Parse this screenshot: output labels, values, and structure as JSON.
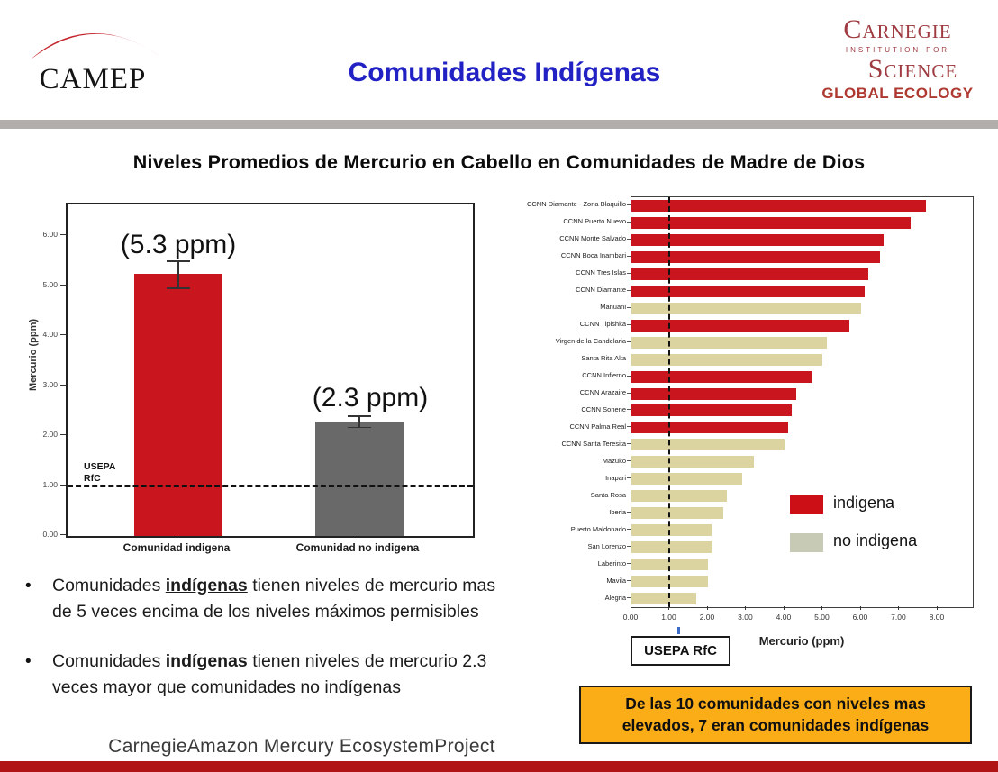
{
  "header": {
    "camep_logo_text": "CAMEP",
    "title": "Comunidades Indígenas",
    "carnegie_logo": {
      "line1": "Carnegie",
      "line2": "institution for",
      "line3": "Science",
      "line4": "GLOBAL ECOLOGY"
    }
  },
  "slide_title": "Niveles Promedios de Mercurio en Cabello en Comunidades de Madre de Dios",
  "colors": {
    "indigena_bar": "#C9151D",
    "no_indigena_bar": "#DBD4A0",
    "legend_indigena": "#CC0F17",
    "legend_no_indigena": "#C7CBB6",
    "gray_bar": "#696969",
    "header_title_blue": "#2222C4",
    "carnegie_maroon": "#9F3B41",
    "carnegie_ecology_red": "#AE3931",
    "camep_swoosh_red": "#C5262E",
    "divider_gray": "#B2AEAB",
    "callout_bg": "#FBAD18",
    "bottom_bar_red": "#B01414",
    "usepa_tick_blue": "#3B6CC7"
  },
  "chart_data": [
    {
      "type": "bar",
      "title": "Niveles Promedios de Mercurio en Cabello en Comunidades de Madre de Dios",
      "categories": [
        "Comunidad indigena",
        "Comunidad no indigena"
      ],
      "values": [
        5.25,
        2.3
      ],
      "errors": [
        0.27,
        0.11
      ],
      "annotations": [
        "(5.3 ppm)",
        "(2.3 ppm)"
      ],
      "bar_color_names": [
        "indigena_bar",
        "gray_bar"
      ],
      "ylabel": "Mercurio (ppm)",
      "yticks": [
        "0.00",
        "1.00",
        "2.00",
        "3.00",
        "4.00",
        "5.00",
        "6.00"
      ],
      "ylim": [
        0,
        6.64
      ],
      "grid": false,
      "legend_position": "none",
      "reference_line": {
        "value": 1.0,
        "label_lines": [
          "USEPA",
          "RfC"
        ]
      }
    },
    {
      "type": "bar-horizontal",
      "xlabel": "Mercurio (ppm)",
      "xticks": [
        "0.00",
        "1.00",
        "2.00",
        "3.00",
        "4.00",
        "5.00",
        "6.00",
        "7.00",
        "8.00"
      ],
      "xlim": [
        0,
        8.92
      ],
      "grid": false,
      "legend_position": "inside-right",
      "reference_line": {
        "value": 1.0,
        "label": "USEPA RfC"
      },
      "legend": [
        {
          "label": "indigena",
          "color_name": "legend_indigena"
        },
        {
          "label": "no indigena",
          "color_name": "legend_no_indigena"
        }
      ],
      "rows": [
        {
          "label": "CCNN Diamante - Zona Blaquillo",
          "value": 7.7,
          "group": "indigena"
        },
        {
          "label": "CCNN Puerto Nuevo",
          "value": 7.3,
          "group": "indigena"
        },
        {
          "label": "CCNN Monte Salvado",
          "value": 6.6,
          "group": "indigena"
        },
        {
          "label": "CCNN Boca Inambari",
          "value": 6.5,
          "group": "indigena"
        },
        {
          "label": "CCNN Tres Islas",
          "value": 6.2,
          "group": "indigena"
        },
        {
          "label": "CCNN Diamante",
          "value": 6.1,
          "group": "indigena"
        },
        {
          "label": "Manuani",
          "value": 6.0,
          "group": "no indigena"
        },
        {
          "label": "CCNN Tipishka",
          "value": 5.7,
          "group": "indigena"
        },
        {
          "label": "Virgen de la Candelaria",
          "value": 5.1,
          "group": "no indigena"
        },
        {
          "label": "Santa Rita Alta",
          "value": 5.0,
          "group": "no indigena"
        },
        {
          "label": "CCNN Infierno",
          "value": 4.7,
          "group": "indigena"
        },
        {
          "label": "CCNN Arazaire",
          "value": 4.3,
          "group": "indigena"
        },
        {
          "label": "CCNN Sonene",
          "value": 4.2,
          "group": "indigena"
        },
        {
          "label": "CCNN Palma Real",
          "value": 4.1,
          "group": "indigena"
        },
        {
          "label": "CCNN Santa Teresita",
          "value": 4.0,
          "group": "no indigena"
        },
        {
          "label": "Mazuko",
          "value": 3.2,
          "group": "no indigena"
        },
        {
          "label": "Inapari",
          "value": 2.9,
          "group": "no indigena"
        },
        {
          "label": "Santa Rosa",
          "value": 2.5,
          "group": "no indigena"
        },
        {
          "label": "Iberia",
          "value": 2.4,
          "group": "no indigena"
        },
        {
          "label": "Puerto Maldonado",
          "value": 2.1,
          "group": "no indigena"
        },
        {
          "label": "San Lorenzo",
          "value": 2.1,
          "group": "no indigena"
        },
        {
          "label": "Laberinto",
          "value": 2.0,
          "group": "no indigena"
        },
        {
          "label": "Mavila",
          "value": 2.0,
          "group": "no indigena"
        },
        {
          "label": "Alegria",
          "value": 1.7,
          "group": "no indigena"
        }
      ]
    }
  ],
  "bullet_marker": "•",
  "bullets": [
    {
      "lines": [
        [
          {
            "t": "Comunidades "
          },
          {
            "t": "indígenas",
            "b": true,
            "u": true
          },
          {
            "t": "  tienen niveles de mercurio mas"
          }
        ],
        [
          {
            "t": "de 5 veces encima de los niveles máximos permisibles"
          }
        ]
      ]
    },
    {
      "lines": [
        [
          {
            "t": "Comunidades "
          },
          {
            "t": "indígenas",
            "b": true,
            "u": true
          },
          {
            "t": " tienen niveles de mercurio 2.3"
          }
        ],
        [
          {
            "t": "veces mayor que comunidades no indígenas"
          }
        ]
      ]
    }
  ],
  "callout": {
    "lines": [
      "De las 10 comunidades con niveles mas",
      "elevados, 7 eran comunidades indígenas"
    ]
  },
  "footer": "CarnegieAmazon Mercury EcosystemProject"
}
